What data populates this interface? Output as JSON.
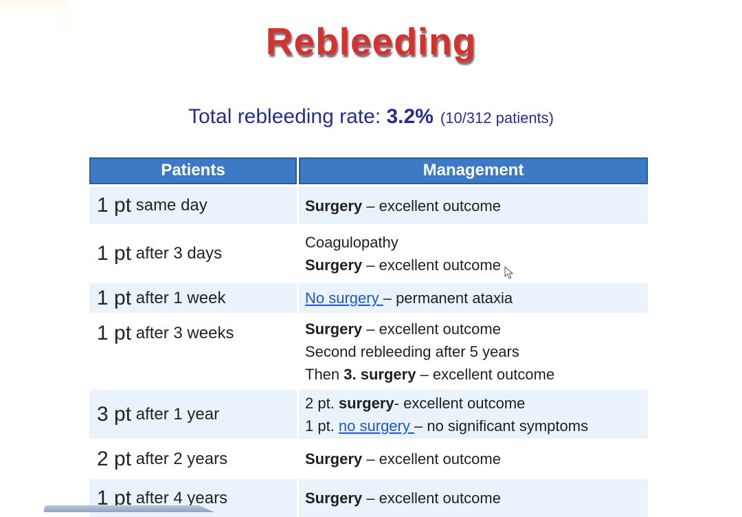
{
  "page": {
    "title": "Rebleeding",
    "subtitle": {
      "prefix": "Total rebleeding rate: ",
      "rate": "3.2%",
      "note": "(10/312 patients)"
    }
  },
  "table": {
    "headers": [
      "Patients",
      "Management"
    ],
    "rows": [
      {
        "shade": true,
        "patients": [
          {
            "t": "1 pt",
            "big": true
          },
          {
            "t": " same day"
          }
        ],
        "management": [
          [
            {
              "t": "Surgery",
              "b": true
            },
            {
              "t": " – excellent outcome"
            }
          ]
        ]
      },
      {
        "shade": false,
        "patients": [
          {
            "t": "1 pt",
            "big": true
          },
          {
            "t": " after 3 days"
          }
        ],
        "management": [
          [
            {
              "t": "Coagulopathy"
            }
          ],
          [
            {
              "t": "Surgery",
              "b": true
            },
            {
              "t": " – excellent outcome"
            }
          ]
        ]
      },
      {
        "shade": true,
        "patients": [
          {
            "t": "1 pt",
            "big": true
          },
          {
            "t": " after 1 week"
          }
        ],
        "management": [
          [
            {
              "t": "No surgery ",
              "link": true
            },
            {
              "t": "– permanent ataxia"
            }
          ]
        ]
      },
      {
        "shade": false,
        "ptop": true,
        "patients": [
          {
            "t": "1 pt",
            "big": true
          },
          {
            "t": " after 3 weeks"
          }
        ],
        "management": [
          [
            {
              "t": "Surgery",
              "b": true
            },
            {
              "t": " – excellent outcome"
            }
          ],
          [
            {
              "t": "Second rebleeding after 5 years"
            }
          ],
          [
            {
              "t": "Then "
            },
            {
              "t": "3. surgery",
              "b": true
            },
            {
              "t": " – excellent outcome"
            }
          ]
        ]
      },
      {
        "shade": true,
        "patients": [
          {
            "t": "3 pt",
            "big": true
          },
          {
            "t": " after 1 year"
          }
        ],
        "management": [
          [
            {
              "t": "2 pt. "
            },
            {
              "t": "surgery",
              "b": true
            },
            {
              "t": "- excellent outcome"
            }
          ],
          [
            {
              "t": "1 pt. "
            },
            {
              "t": "no surgery ",
              "link": true
            },
            {
              "t": "– no significant symptoms"
            }
          ]
        ]
      },
      {
        "shade": false,
        "patients": [
          {
            "t": "2 pt",
            "big": true
          },
          {
            "t": " after 2 years"
          }
        ],
        "management": [
          [
            {
              "t": "Surgery",
              "b": true
            },
            {
              "t": " – excellent outcome"
            }
          ]
        ]
      },
      {
        "shade": true,
        "patients": [
          {
            "t": "1 pt",
            "big": true
          },
          {
            "t": " after 4 years"
          }
        ],
        "management": [
          [
            {
              "t": "Surgery",
              "b": true
            },
            {
              "t": " – excellent outcome"
            }
          ]
        ]
      }
    ]
  },
  "colors": {
    "title_red": "#d5312d",
    "subtitle_navy": "#252c8e",
    "header_blue": "#3d7ac6",
    "header_border": "#2b5a97",
    "row_shade": "#eaf3fb",
    "link_blue": "#1f56ce"
  }
}
